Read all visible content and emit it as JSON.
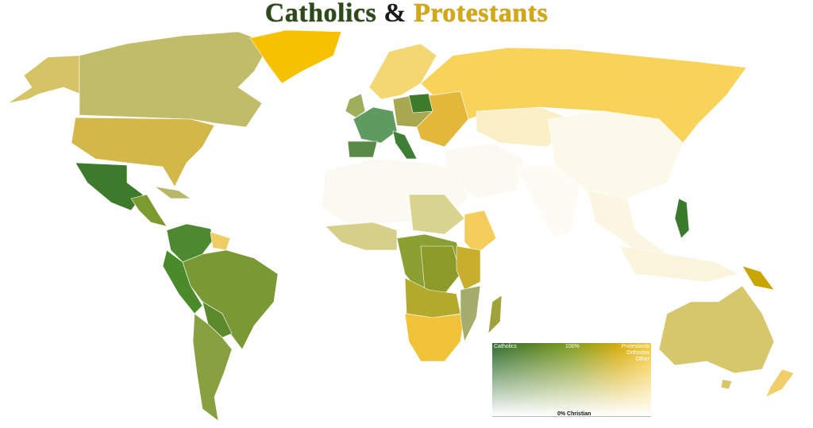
{
  "title": {
    "part1": "Catholics",
    "part2": "&",
    "part3": "Protestants"
  },
  "legend": {
    "top_left": "Catholics",
    "top_center": "100%",
    "top_right": [
      "Protestants",
      "Orthodox",
      "Other"
    ],
    "bottom": "0% Christian"
  },
  "colors": {
    "catholic": "#2d6b2c",
    "protestant": "#d6ac08",
    "orthodox_other": "#f6c93a",
    "non_christian": "#ffffff"
  }
}
